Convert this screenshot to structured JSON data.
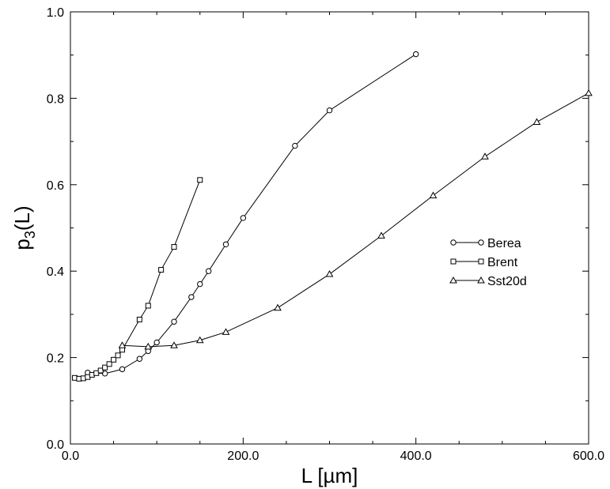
{
  "chart_data": {
    "type": "line",
    "title": "",
    "xlabel": "L [µm]",
    "ylabel_main": "p",
    "ylabel_sub": "3",
    "ylabel_tail": "(L)",
    "xlim": [
      0,
      600
    ],
    "ylim": [
      0,
      1.0
    ],
    "x_ticks": [
      0,
      200,
      400,
      600
    ],
    "x_tick_labels": [
      "0.0",
      "200.0",
      "400.0",
      "600.0"
    ],
    "y_ticks": [
      0.0,
      0.2,
      0.4,
      0.6,
      0.8,
      1.0
    ],
    "y_tick_labels": [
      "0.0",
      "0.2",
      "0.4",
      "0.6",
      "0.8",
      "1.0"
    ],
    "grid": false,
    "legend_position": "right",
    "series": [
      {
        "name": "Berea",
        "marker": "circle",
        "x": [
          20,
          40,
          60,
          80,
          90,
          100,
          120,
          140,
          150,
          160,
          180,
          200,
          260,
          300,
          400
        ],
        "y": [
          0.165,
          0.163,
          0.173,
          0.197,
          0.215,
          0.235,
          0.283,
          0.34,
          0.37,
          0.4,
          0.462,
          0.523,
          0.69,
          0.772,
          0.902
        ]
      },
      {
        "name": "Brent",
        "marker": "square",
        "x": [
          5,
          10,
          15,
          20,
          25,
          30,
          35,
          40,
          45,
          50,
          55,
          60,
          80,
          90,
          105,
          120,
          150
        ],
        "y": [
          0.153,
          0.151,
          0.152,
          0.155,
          0.16,
          0.164,
          0.17,
          0.177,
          0.185,
          0.195,
          0.205,
          0.218,
          0.288,
          0.32,
          0.403,
          0.456,
          0.611
        ]
      },
      {
        "name": "Sst20d",
        "marker": "triangle",
        "x": [
          60,
          90,
          120,
          150,
          180,
          240,
          300,
          360,
          420,
          480,
          540,
          600
        ],
        "y": [
          0.228,
          0.225,
          0.228,
          0.24,
          0.259,
          0.315,
          0.393,
          0.482,
          0.575,
          0.665,
          0.745,
          0.812
        ]
      }
    ]
  }
}
